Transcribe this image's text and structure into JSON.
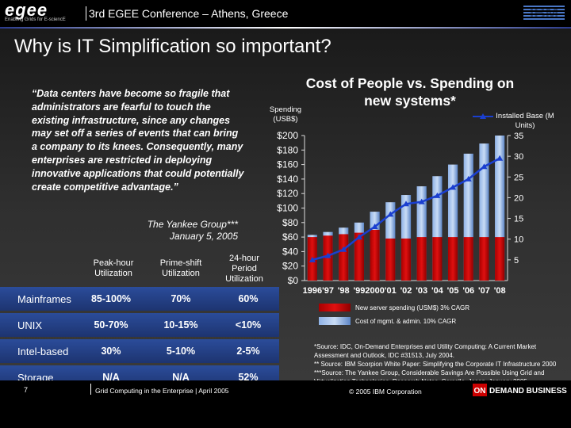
{
  "header": {
    "logo_word": "egee",
    "logo_tagline": "Enabling Grids for E-sciencE",
    "conference": "3rd EGEE Conference – Athens, Greece",
    "brand": "IBM"
  },
  "slide": {
    "title": "Why is IT Simplification so important?",
    "quote": "“Data centers have become so fragile that administrators are fearful to touch the existing infrastructure, since any changes may set off a series of events that can bring a company to its knees. Consequently, many enterprises are restricted in deploying innovative applications that could potentially create competitive advantage.”",
    "attribution_line1": "The Yankee Group***",
    "attribution_line2": "January 5, 2005"
  },
  "table": {
    "headers": [
      "Peak-hour Utilization",
      "Prime-shift Utilization",
      "24-hour Period Utilization"
    ],
    "rows": [
      {
        "label": "Mainframes",
        "values": [
          "85-100%",
          "70%",
          "60%"
        ]
      },
      {
        "label": "UNIX",
        "values": [
          "50-70%",
          "10-15%",
          "<10%"
        ]
      },
      {
        "label": "Intel-based",
        "values": [
          "30%",
          "5-10%",
          "2-5%"
        ]
      },
      {
        "label": "Storage",
        "values": [
          "N/A",
          "N/A",
          "52%"
        ]
      }
    ]
  },
  "chart_data": {
    "type": "bar",
    "title": "Cost of People vs. Spending on new systems*",
    "ylabel": "Spending (USB$)",
    "y2label": "Installed Base (M Units)",
    "ylim": [
      0,
      200
    ],
    "y2lim": [
      0,
      35
    ],
    "yticks": [
      "$0",
      "$20",
      "$40",
      "$60",
      "$80",
      "$100",
      "$120",
      "$140",
      "$160",
      "$180",
      "$200"
    ],
    "y2ticks": [
      "5",
      "10",
      "15",
      "20",
      "25",
      "30",
      "35"
    ],
    "categories": [
      "1996",
      "'97",
      "'98",
      "'99",
      "2000",
      "'01",
      "'02",
      "'03",
      "'04",
      "'05",
      "'06",
      "'07",
      "'08"
    ],
    "series": [
      {
        "name": "New server spending (USM$) 3% CAGR",
        "kind": "bar",
        "color": "#cc0000",
        "values": [
          60,
          62,
          64,
          66,
          70,
          58,
          58,
          60,
          60,
          60,
          60,
          60,
          60
        ]
      },
      {
        "name": "Cost of mgmt. & admin. 10% CAGR",
        "kind": "bar",
        "color": "#6f9ad6",
        "values": [
          63,
          67,
          73,
          80,
          95,
          108,
          118,
          130,
          144,
          160,
          175,
          189,
          200
        ]
      },
      {
        "name": "Installed Base",
        "kind": "line",
        "axis": "y2",
        "color": "#1a3fd0",
        "values": [
          5,
          6,
          7.5,
          10.5,
          13,
          16,
          18.5,
          19,
          20.5,
          22.5,
          24.5,
          27.5,
          29.5
        ]
      }
    ],
    "legend": "bottom"
  },
  "sources": {
    "line1": "*Source: IDC, On-Demand Enterprises and Utility Computing: A Current Market Assessment and Outlook, IDC #31513, July 2004.",
    "line2": "** Source: IBM Scorpion White Paper: Simplifying the Corporate IT Infrastructure 2000",
    "line3": "***Source: The Yankee Group, Considerable Savings Are Possible Using Grid and Virtualization Technologies, Research Notes, Corsello, Jason. January 2005"
  },
  "footer": {
    "page": "7",
    "text": "Grid Computing in the Enterprise | April 2005",
    "copyright": "© 2005 IBM Corporation",
    "ondemand_on": "ON",
    "ondemand_rest": "DEMAND BUSINESS"
  }
}
